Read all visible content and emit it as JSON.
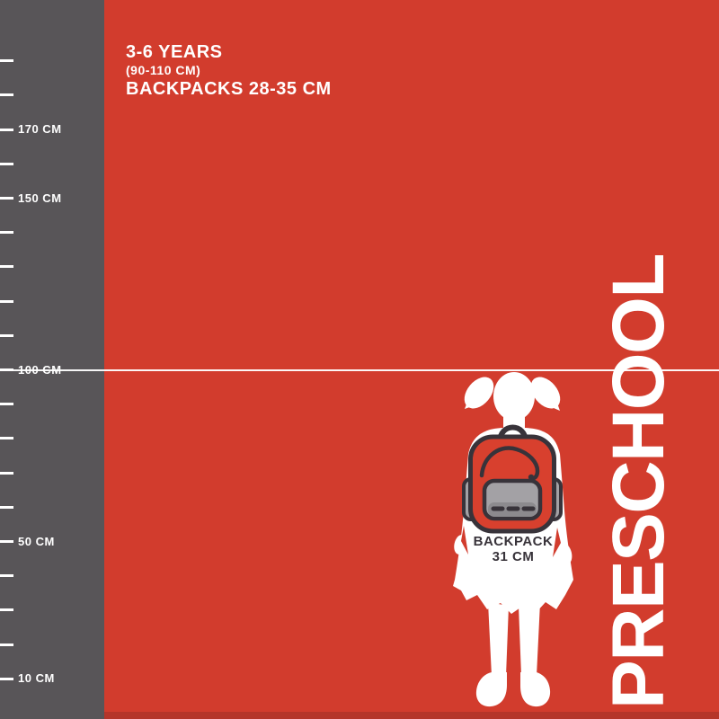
{
  "header": {
    "age_range": "3-6 YEARS",
    "height_range": "(90-110 CM)",
    "backpack_size_range": "BACKPACKS 28-35 CM"
  },
  "category": {
    "label": "PRESCHOOL"
  },
  "figure": {
    "backpack_label_line1": "BACKPACK",
    "backpack_label_line2": "31 CM"
  },
  "ruler": {
    "unit": "CM",
    "min_cm": 10,
    "max_cm": 190,
    "step_cm": 10,
    "reference_line_cm": 100,
    "ticks": [
      {
        "value": 190,
        "label": ""
      },
      {
        "value": 180,
        "label": ""
      },
      {
        "value": 170,
        "label": "170 CM"
      },
      {
        "value": 160,
        "label": ""
      },
      {
        "value": 150,
        "label": "150 CM"
      },
      {
        "value": 140,
        "label": ""
      },
      {
        "value": 130,
        "label": ""
      },
      {
        "value": 120,
        "label": ""
      },
      {
        "value": 110,
        "label": ""
      },
      {
        "value": 100,
        "label": "100 CM"
      },
      {
        "value": 90,
        "label": ""
      },
      {
        "value": 80,
        "label": ""
      },
      {
        "value": 70,
        "label": ""
      },
      {
        "value": 60,
        "label": ""
      },
      {
        "value": 50,
        "label": "50 CM"
      },
      {
        "value": 40,
        "label": ""
      },
      {
        "value": 30,
        "label": ""
      },
      {
        "value": 20,
        "label": ""
      },
      {
        "value": 10,
        "label": "10 CM"
      }
    ]
  },
  "colors": {
    "background_red": "#D23C2D",
    "backpack_red": "#D8402E",
    "panel_gray": "#585558",
    "charcoal": "#38333A",
    "pocket_gray": "#A3A1A5",
    "pocket_gray_dark": "#8C8A8E",
    "bottom_strip_red": "#B5352A",
    "white": "#FFFFFF"
  }
}
